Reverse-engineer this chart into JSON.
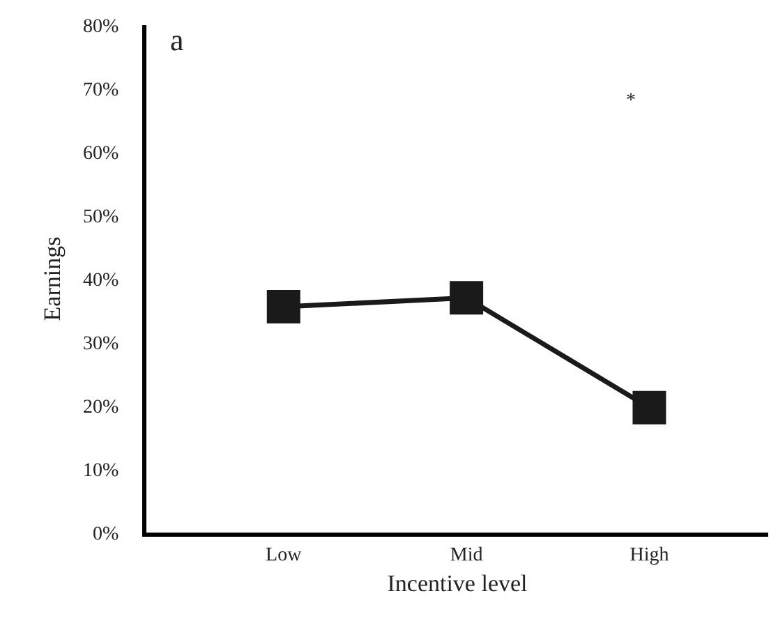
{
  "chart_data": {
    "type": "line",
    "xlabel": "Incentive level",
    "ylabel": "Earnings",
    "categories": [
      "Low",
      "Mid",
      "High"
    ],
    "series": [
      {
        "color": "#1a1a1a",
        "values": [
          35.6,
          37,
          19.7
        ]
      }
    ],
    "ylim": [
      0,
      80
    ],
    "yticks": [
      {
        "value": 0,
        "label": "0%"
      },
      {
        "value": 10,
        "label": "10%"
      },
      {
        "value": 20,
        "label": "20%"
      },
      {
        "value": 30,
        "label": "30%"
      },
      {
        "value": 40,
        "label": "40%"
      },
      {
        "value": 50,
        "label": "50%"
      },
      {
        "value": 60,
        "label": "60%"
      },
      {
        "value": 70,
        "label": "70%"
      },
      {
        "value": 80,
        "label": "80%"
      }
    ],
    "annotations": [
      "a",
      "*"
    ],
    "grid": false,
    "marker": "square",
    "line_style": "solid"
  }
}
